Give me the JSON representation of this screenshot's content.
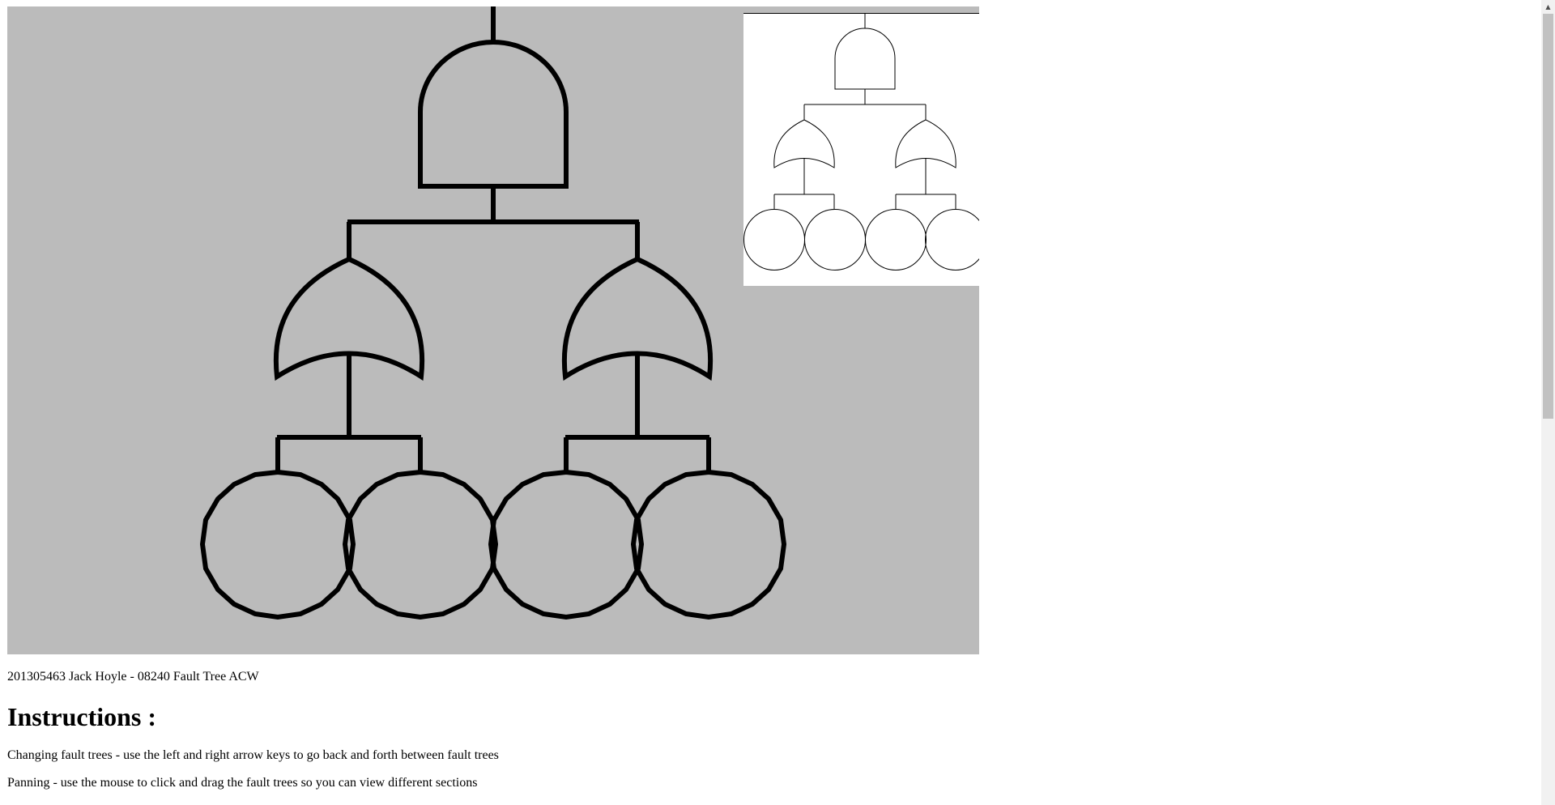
{
  "canvas": {
    "main_background": "#bbbbbb",
    "minimap_background": "#ffffff",
    "stroke_color": "#000000"
  },
  "fault_tree": {
    "top_gate": "and-gate",
    "children": [
      {
        "gate": "or-gate",
        "events": [
          "basic-event",
          "basic-event"
        ]
      },
      {
        "gate": "or-gate",
        "events": [
          "basic-event",
          "basic-event"
        ]
      }
    ]
  },
  "caption": "201305463 Jack Hoyle - 08240 Fault Tree ACW",
  "instructions": {
    "heading": "Instructions :",
    "items": [
      "Changing fault trees - use the left and right arrow keys to go back and forth between fault trees",
      "Panning - use the mouse to click and drag the fault trees so you can view different sections"
    ]
  },
  "scrollbar": {
    "up_icon": "triangle-up-icon"
  }
}
